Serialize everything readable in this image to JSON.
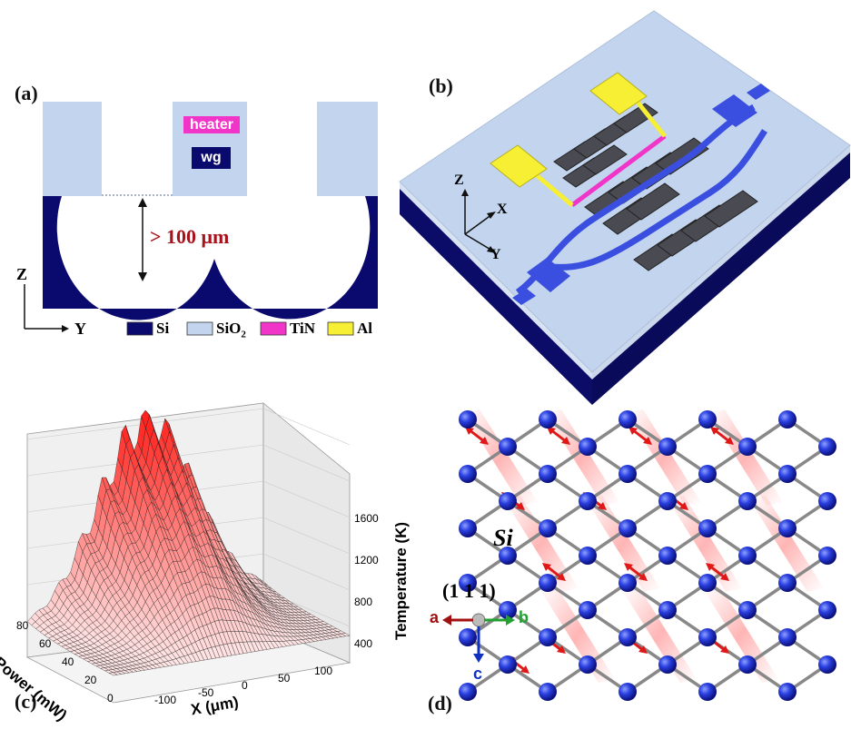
{
  "figure": {
    "panel_a": {
      "label": "(a)",
      "heater_label": "heater",
      "wg_label": "wg",
      "depth_label": "> 100 μm",
      "axis_z": "Z",
      "axis_y": "Y",
      "legend": [
        {
          "name": "Si",
          "color": "#0a0a6e"
        },
        {
          "name": "SiO",
          "sub": "2",
          "color": "#c2d4ee"
        },
        {
          "name": "TiN",
          "color": "#f035c8"
        },
        {
          "name": "Al",
          "color": "#f6ef34"
        }
      ]
    },
    "panel_b": {
      "label": "(b)",
      "axis_z": "Z",
      "axis_x": "X",
      "axis_y": "Y"
    },
    "panel_c": {
      "label": "(c)",
      "x_axis_label": "X (μm)",
      "y_axis_label": "Power (mW)",
      "z_axis_label": "Temperature (K)",
      "x_ticks": [
        "-100",
        "-50",
        "0",
        "50",
        "100"
      ],
      "y_ticks": [
        "0",
        "20",
        "40",
        "60",
        "80"
      ],
      "z_ticks": [
        "400",
        "800",
        "1200",
        "1600"
      ]
    },
    "panel_d": {
      "label": "(d)",
      "material_label": "Si",
      "plane_label": "(1 1 1)",
      "axis_a": "a",
      "axis_b": "b",
      "axis_c": "c"
    },
    "colors": {
      "si_dark": "#0a0a6e",
      "sio2": "#c2d4ee",
      "tin": "#f035c8",
      "al": "#f6ef34",
      "waveguide": "#3a4fe0",
      "surface_red": "#e8322c",
      "atom": "#1a2fd0"
    }
  }
}
